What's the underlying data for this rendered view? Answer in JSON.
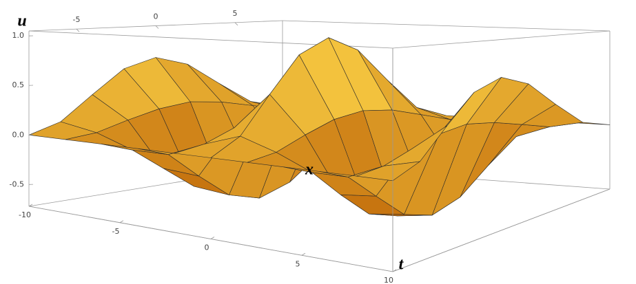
{
  "chart_data": {
    "type": "surface",
    "zlabel": "u",
    "xlabel": "x",
    "tlabel": "t",
    "t": [
      -10,
      -8,
      -6,
      -4,
      -2,
      0,
      2,
      4,
      6,
      8,
      10
    ],
    "x": [
      -8,
      -6,
      -4,
      -2,
      0,
      2,
      4,
      6,
      8
    ],
    "z": [
      [
        0,
        0.1,
        0.35,
        0.6,
        0.7,
        0.6,
        0.35,
        0.1,
        0
      ],
      [
        0,
        0.03,
        0.12,
        0.2,
        0.24,
        0.2,
        0.12,
        0.03,
        0
      ],
      [
        0,
        -0.1,
        -0.33,
        -0.57,
        -0.66,
        -0.57,
        -0.33,
        -0.1,
        0
      ],
      [
        0,
        -0.1,
        -0.36,
        -0.61,
        -0.71,
        -0.61,
        -0.36,
        -0.1,
        0
      ],
      [
        0,
        0.04,
        0.15,
        0.25,
        0.29,
        0.25,
        0.15,
        0.04,
        0
      ],
      [
        0,
        0.15,
        0.5,
        0.85,
        1.0,
        0.85,
        0.5,
        0.15,
        0
      ],
      [
        0,
        0.04,
        0.15,
        0.25,
        0.29,
        0.25,
        0.15,
        0.04,
        0
      ],
      [
        0,
        -0.1,
        -0.36,
        -0.61,
        -0.71,
        -0.61,
        -0.36,
        -0.1,
        0
      ],
      [
        0,
        -0.1,
        -0.33,
        -0.57,
        -0.66,
        -0.57,
        -0.33,
        -0.1,
        0
      ],
      [
        0,
        0.03,
        0.12,
        0.2,
        0.24,
        0.2,
        0.12,
        0.03,
        0
      ],
      [
        0,
        0.1,
        0.35,
        0.6,
        0.7,
        0.6,
        0.35,
        0.1,
        0
      ]
    ],
    "tlim": [
      -10,
      10
    ],
    "tticks": [
      -10,
      -5,
      0,
      5,
      10
    ],
    "xlim": [
      -8,
      8
    ],
    "xticks": [
      -5,
      0,
      5
    ],
    "zlim": [
      -0.72,
      1.05
    ],
    "zticks": [
      {
        "value": 1,
        "label": "1.0"
      },
      0.5,
      {
        "value": 0,
        "label": "0.0"
      },
      -0.5
    ],
    "color_low": "#b85a00",
    "color_high": "#ffd84a"
  }
}
